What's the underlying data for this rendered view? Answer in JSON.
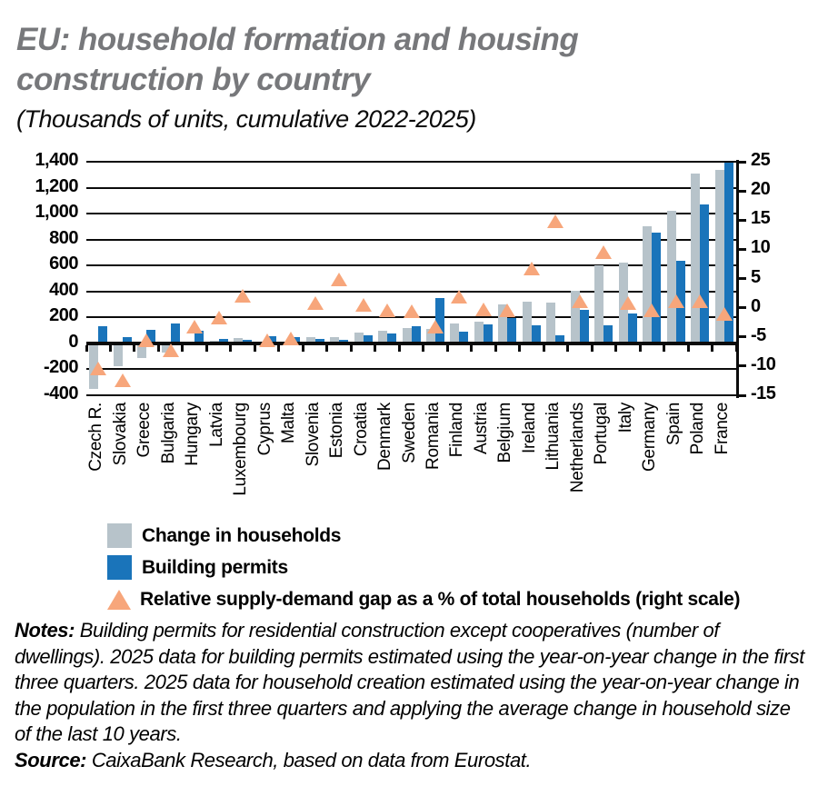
{
  "header": {
    "title": "EU: household formation and housing construction by country",
    "subtitle": "(Thousands of units, cumulative 2022-2025)"
  },
  "chart_data": {
    "type": "bar",
    "title": "EU: household formation and housing construction by country",
    "subtitle": "(Thousands of units, cumulative 2022-2025)",
    "categories": [
      "Czech R.",
      "Slovakia",
      "Greece",
      "Bulgaria",
      "Hungary",
      "Latvia",
      "Luxembourg",
      "Cyprus",
      "Malta",
      "Slovenia",
      "Estonia",
      "Croatia",
      "Denmark",
      "Sweden",
      "Romania",
      "Finland",
      "Austria",
      "Belgium",
      "Ireland",
      "Lithuania",
      "Netherlands",
      "Portugal",
      "Italy",
      "Germany",
      "Spain",
      "Poland",
      "France"
    ],
    "series": [
      {
        "name": "Change in households",
        "type": "bar",
        "axis": "left",
        "color": "#b7c3ca",
        "values": [
          -350,
          -175,
          -115,
          -70,
          10,
          20,
          40,
          10,
          15,
          45,
          50,
          80,
          95,
          120,
          110,
          150,
          170,
          300,
          320,
          315,
          405,
          605,
          620,
          900,
          1020,
          1310,
          1335
        ]
      },
      {
        "name": "Building permits",
        "type": "bar",
        "axis": "left",
        "color": "#1a74ba",
        "values": [
          130,
          50,
          105,
          155,
          100,
          35,
          30,
          55,
          45,
          35,
          25,
          65,
          75,
          135,
          350,
          90,
          145,
          195,
          140,
          65,
          255,
          140,
          230,
          855,
          640,
          1070,
          1390
        ]
      },
      {
        "name": "Relative supply-demand gap as a % of total households (right scale)",
        "type": "triangle",
        "axis": "right",
        "color": "#f7a67b",
        "values": [
          -10.5,
          -12.5,
          -5.7,
          -7.4,
          -3.3,
          -1.7,
          2,
          -5.6,
          -5.3,
          0.7,
          4.8,
          0.4,
          -0.5,
          -0.7,
          -3.3,
          1.8,
          -0.3,
          -0.6,
          6.6,
          14.8,
          1,
          9.5,
          0.7,
          -0.5,
          1,
          1,
          -1.1
        ]
      }
    ],
    "left_axis": {
      "min": -400,
      "max": 1400,
      "step": 200,
      "tick_labels": [
        "1,400",
        "1,200",
        "1,000",
        "800",
        "600",
        "400",
        "200",
        "0",
        "-200",
        "-400"
      ]
    },
    "right_axis": {
      "min": -15,
      "max": 25,
      "step": 5,
      "tick_labels": [
        "25",
        "20",
        "15",
        "10",
        "5",
        "0",
        "-5",
        "-10",
        "-15"
      ]
    },
    "grid": "horizontal",
    "legend_position": "bottom-left"
  },
  "notes": {
    "label": "Notes:",
    "text": " Building permits for residential construction except cooperatives (number of dwellings). 2025 data for building permits estimated using the year-on-year change in the first three quarters. 2025 data for household creation estimated using the year-on-year change in the population in the first three quarters and applying the average change in household size of the last 10 years."
  },
  "source": {
    "label": "Source:",
    "text": " CaixaBank Research, based on data from Eurostat."
  },
  "colors": {
    "title_gray": "#77787b",
    "households_bar": "#b7c3ca",
    "permits_bar": "#1a74ba",
    "gap_triangle": "#f7a67b",
    "axis_black": "#0b0b0b"
  }
}
